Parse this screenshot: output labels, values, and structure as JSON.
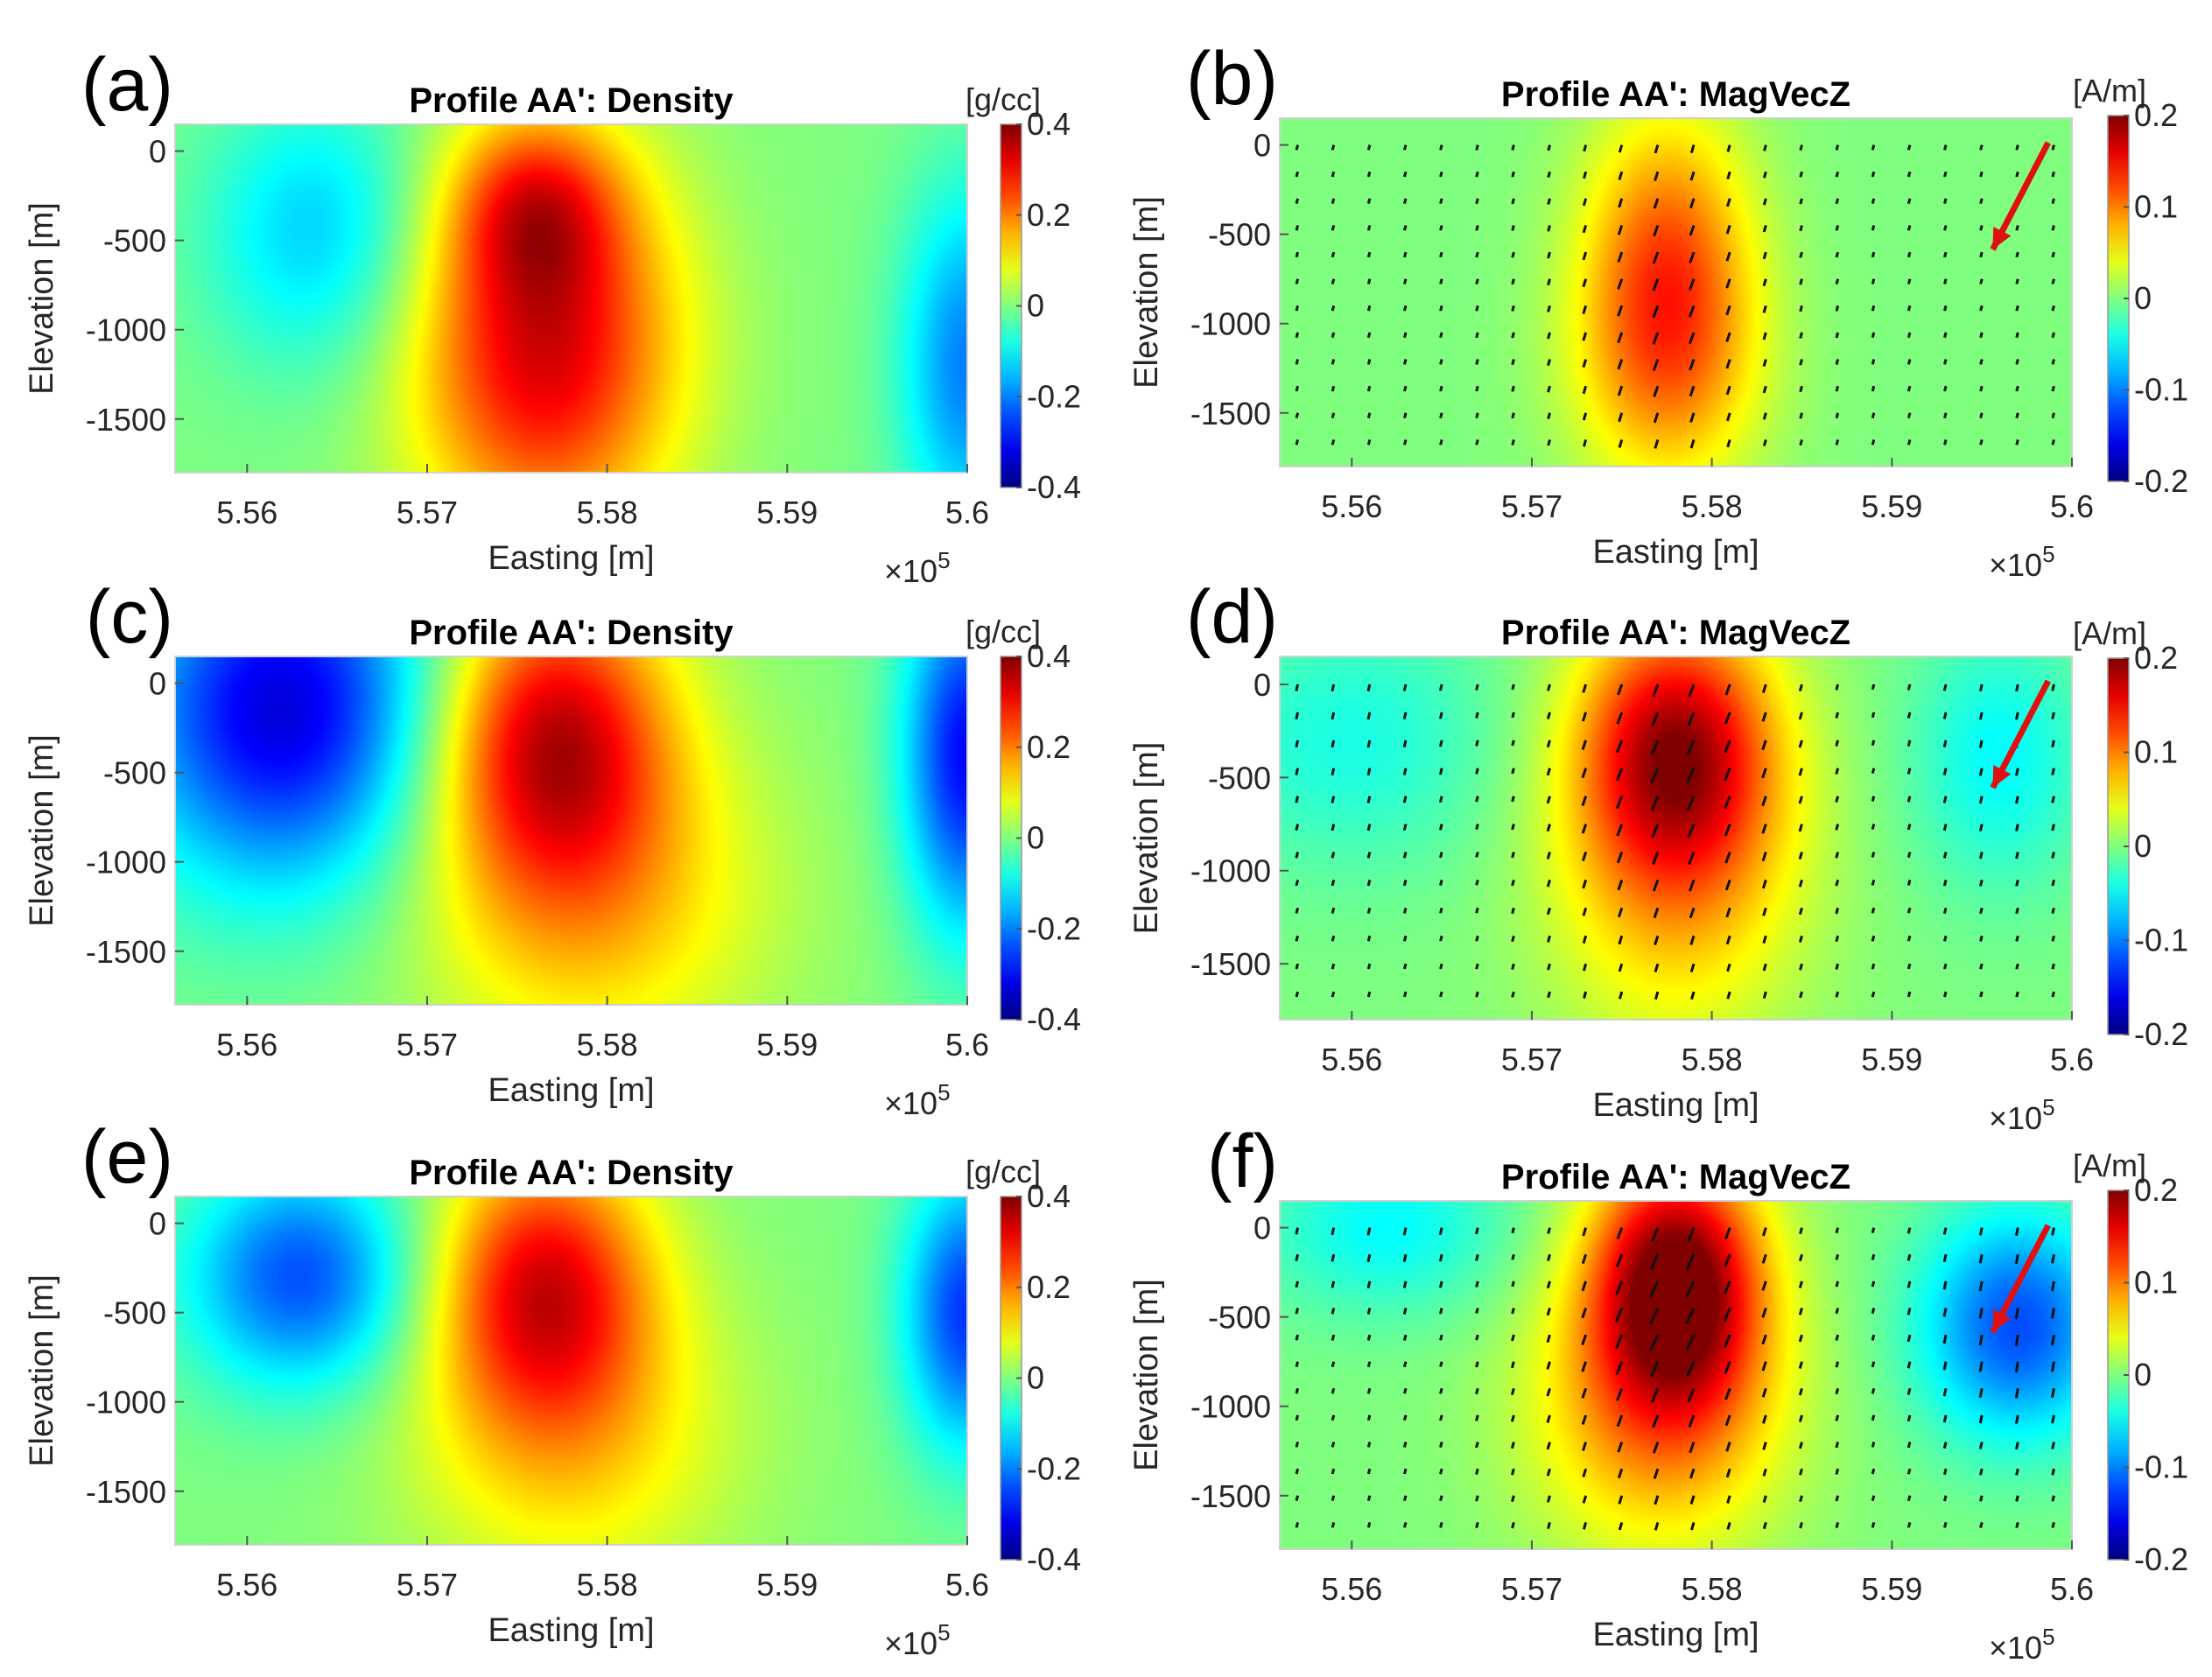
{
  "chart_data": [
    {
      "type": "heatmap",
      "panel_label": "(a)",
      "title": "Profile AA': Density",
      "xlabel": "Easting [m]",
      "ylabel": "Elevation [m]",
      "x_ticks": [
        "5.56",
        "5.57",
        "5.58",
        "5.59",
        "5.6"
      ],
      "x_multiplier": "×10",
      "x_multiplier_exp": "5",
      "y_ticks": [
        "0",
        "-500",
        "-1000",
        "-1500"
      ],
      "xlim": [
        555600,
        560000
      ],
      "ylim": [
        -1800,
        150
      ],
      "colorbar": {
        "label": "[g/cc]",
        "ticks": [
          "0.4",
          "0.2",
          "0",
          "-0.2",
          "-0.4"
        ],
        "range": [
          -0.4,
          0.4
        ]
      },
      "anomalies": [
        {
          "x": 556400,
          "y": -450,
          "value": -0.14,
          "sx": 450,
          "sy": 550
        },
        {
          "x": 557650,
          "y": -1100,
          "value": 0.33,
          "sx": 520,
          "sy": 750
        },
        {
          "x": 557600,
          "y": -300,
          "value": 0.18,
          "sx": 330,
          "sy": 350
        },
        {
          "x": 560000,
          "y": -1200,
          "value": -0.2,
          "sx": 260,
          "sy": 700
        }
      ],
      "field_vectors": false
    },
    {
      "type": "heatmap",
      "panel_label": "(b)",
      "title": "Profile AA': MagVecZ",
      "xlabel": "Easting [m]",
      "ylabel": "Elevation [m]",
      "x_ticks": [
        "5.56",
        "5.57",
        "5.58",
        "5.59",
        "5.6"
      ],
      "x_multiplier": "×10",
      "x_multiplier_exp": "5",
      "y_ticks": [
        "0",
        "-500",
        "-1000",
        "-1500"
      ],
      "xlim": [
        555600,
        560000
      ],
      "ylim": [
        -1800,
        150
      ],
      "colorbar": {
        "label": "[A/m]",
        "ticks": [
          "0.2",
          "0.1",
          "0",
          "-0.1",
          "-0.2"
        ],
        "range": [
          -0.2,
          0.2
        ]
      },
      "anomalies": [
        {
          "x": 557750,
          "y": -650,
          "value": 0.11,
          "sx": 330,
          "sy": 600
        },
        {
          "x": 557750,
          "y": -1300,
          "value": 0.06,
          "sx": 380,
          "sy": 500
        }
      ],
      "field_vectors": true,
      "inducing_field_arrow": true
    },
    {
      "type": "heatmap",
      "panel_label": "(c)",
      "title": "Profile AA': Density",
      "xlabel": "Easting [m]",
      "ylabel": "Elevation [m]",
      "x_ticks": [
        "5.56",
        "5.57",
        "5.58",
        "5.59",
        "5.6"
      ],
      "x_multiplier": "×10",
      "x_multiplier_exp": "5",
      "y_ticks": [
        "0",
        "-500",
        "-1000",
        "-1500"
      ],
      "xlim": [
        555600,
        560000
      ],
      "ylim": [
        -1800,
        150
      ],
      "colorbar": {
        "label": "[g/cc]",
        "ticks": [
          "0.4",
          "0.2",
          "0",
          "-0.2",
          "-0.4"
        ],
        "range": [
          -0.4,
          0.4
        ]
      },
      "anomalies": [
        {
          "x": 556200,
          "y": -150,
          "value": -0.33,
          "sx": 600,
          "sy": 700
        },
        {
          "x": 557700,
          "y": -300,
          "value": 0.32,
          "sx": 450,
          "sy": 600
        },
        {
          "x": 557900,
          "y": -1200,
          "value": 0.14,
          "sx": 700,
          "sy": 700
        },
        {
          "x": 560000,
          "y": -400,
          "value": -0.3,
          "sx": 250,
          "sy": 700
        }
      ],
      "field_vectors": false
    },
    {
      "type": "heatmap",
      "panel_label": "(d)",
      "title": "Profile AA': MagVecZ",
      "xlabel": "Easting [m]",
      "ylabel": "Elevation [m]",
      "x_ticks": [
        "5.56",
        "5.57",
        "5.58",
        "5.59",
        "5.6"
      ],
      "x_multiplier": "×10",
      "x_multiplier_exp": "5",
      "y_ticks": [
        "0",
        "-500",
        "-1000",
        "-1500"
      ],
      "xlim": [
        555600,
        560000
      ],
      "ylim": [
        -1800,
        150
      ],
      "colorbar": {
        "label": "[A/m]",
        "ticks": [
          "0.2",
          "0.1",
          "0",
          "-0.1",
          "-0.2"
        ],
        "range": [
          -0.2,
          0.2
        ]
      },
      "anomalies": [
        {
          "x": 557800,
          "y": -350,
          "value": 0.16,
          "sx": 380,
          "sy": 500
        },
        {
          "x": 557800,
          "y": -1000,
          "value": 0.07,
          "sx": 500,
          "sy": 700
        },
        {
          "x": 556000,
          "y": -300,
          "value": -0.04,
          "sx": 600,
          "sy": 500
        },
        {
          "x": 559600,
          "y": -400,
          "value": -0.05,
          "sx": 350,
          "sy": 500
        }
      ],
      "field_vectors": true,
      "inducing_field_arrow": true
    },
    {
      "type": "heatmap",
      "panel_label": "(e)",
      "title": "Profile AA': Density",
      "xlabel": "Easting [m]",
      "ylabel": "Elevation [m]",
      "x_ticks": [
        "5.56",
        "5.57",
        "5.58",
        "5.59",
        "5.6"
      ],
      "x_multiplier": "×10",
      "x_multiplier_exp": "5",
      "y_ticks": [
        "0",
        "-500",
        "-1000",
        "-1500"
      ],
      "xlim": [
        555600,
        560000
      ],
      "ylim": [
        -1800,
        150
      ],
      "colorbar": {
        "label": "[g/cc]",
        "ticks": [
          "0.4",
          "0.2",
          "0",
          "-0.2",
          "-0.4"
        ],
        "range": [
          -0.4,
          0.4
        ]
      },
      "anomalies": [
        {
          "x": 556300,
          "y": -300,
          "value": -0.24,
          "sx": 450,
          "sy": 450
        },
        {
          "x": 557650,
          "y": -350,
          "value": 0.3,
          "sx": 420,
          "sy": 550
        },
        {
          "x": 557800,
          "y": -1200,
          "value": 0.12,
          "sx": 650,
          "sy": 650
        },
        {
          "x": 560000,
          "y": -500,
          "value": -0.26,
          "sx": 250,
          "sy": 550
        }
      ],
      "field_vectors": false
    },
    {
      "type": "heatmap",
      "panel_label": "(f)",
      "title": "Profile AA': MagVecZ",
      "xlabel": "Easting [m]",
      "ylabel": "Elevation [m]",
      "x_ticks": [
        "5.56",
        "5.57",
        "5.58",
        "5.59",
        "5.6"
      ],
      "x_multiplier": "×10",
      "x_multiplier_exp": "5",
      "y_ticks": [
        "0",
        "-500",
        "-1000",
        "-1500"
      ],
      "xlim": [
        555600,
        560000
      ],
      "ylim": [
        -1800,
        150
      ],
      "colorbar": {
        "label": "[A/m]",
        "ticks": [
          "0.2",
          "0.1",
          "0",
          "-0.1",
          "-0.2"
        ],
        "range": [
          -0.2,
          0.2
        ]
      },
      "anomalies": [
        {
          "x": 557800,
          "y": -300,
          "value": 0.2,
          "sx": 330,
          "sy": 500
        },
        {
          "x": 557700,
          "y": -1000,
          "value": 0.09,
          "sx": 500,
          "sy": 600
        },
        {
          "x": 559700,
          "y": -550,
          "value": -0.12,
          "sx": 380,
          "sy": 450
        },
        {
          "x": 556200,
          "y": 0,
          "value": -0.05,
          "sx": 500,
          "sy": 350
        }
      ],
      "field_vectors": true,
      "inducing_field_arrow": true
    }
  ]
}
